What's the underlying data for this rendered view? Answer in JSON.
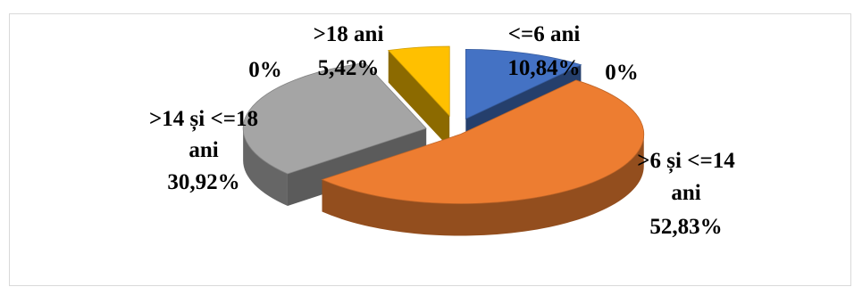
{
  "chart_data": {
    "type": "pie",
    "style": "3d-exploded",
    "categories": [
      "<=6 ani",
      ">6 și <=14 ani",
      ">14 și <=18 ani",
      ">18 ani"
    ],
    "values": [
      10.84,
      52.83,
      30.92,
      5.42
    ],
    "value_labels": [
      "10,84%",
      "52,83%",
      "30,92%",
      "5,42%"
    ],
    "zero_labels": [
      "0%",
      "0%"
    ],
    "label_lines": [
      [
        "<=6 ani",
        "10,84%"
      ],
      [
        ">6 și <=14",
        "ani",
        "52,83%"
      ],
      [
        ">14 și <=18",
        "ani",
        "30,92%"
      ],
      [
        ">18 ani",
        "5,42%"
      ]
    ],
    "colors": {
      "<=6 ani": "#4472c4",
      ">6 și <=14 ani": "#ed7d31",
      ">14 și <=18 ani": "#a5a5a5",
      ">18 ani": "#ffc000"
    },
    "title": "",
    "legend": "none"
  }
}
